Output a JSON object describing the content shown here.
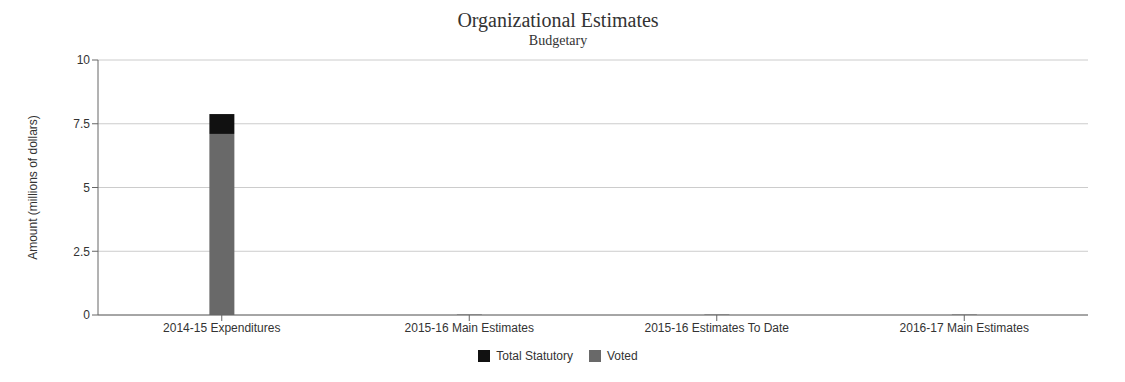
{
  "chart_data": {
    "type": "bar",
    "title": "Organizational Estimates",
    "subtitle": "Budgetary",
    "categories": [
      "2014-15 Expenditures",
      "2015-16 Main Estimates",
      "2015-16 Estimates To Date",
      "2016-17 Main Estimates"
    ],
    "series": [
      {
        "name": "Voted",
        "color": "#696969",
        "values": [
          7.1,
          0.02,
          0.02,
          0.02
        ]
      },
      {
        "name": "Total Statutory",
        "color": "#111111",
        "values": [
          0.78,
          0.0,
          0.0,
          0.0
        ]
      }
    ],
    "stacked": true,
    "ylabel": "Amount (millions of dollars)",
    "ylim": [
      0,
      10
    ],
    "yticks": [
      0,
      2.5,
      5,
      7.5,
      10
    ],
    "grid": true,
    "legend": "bottom"
  }
}
